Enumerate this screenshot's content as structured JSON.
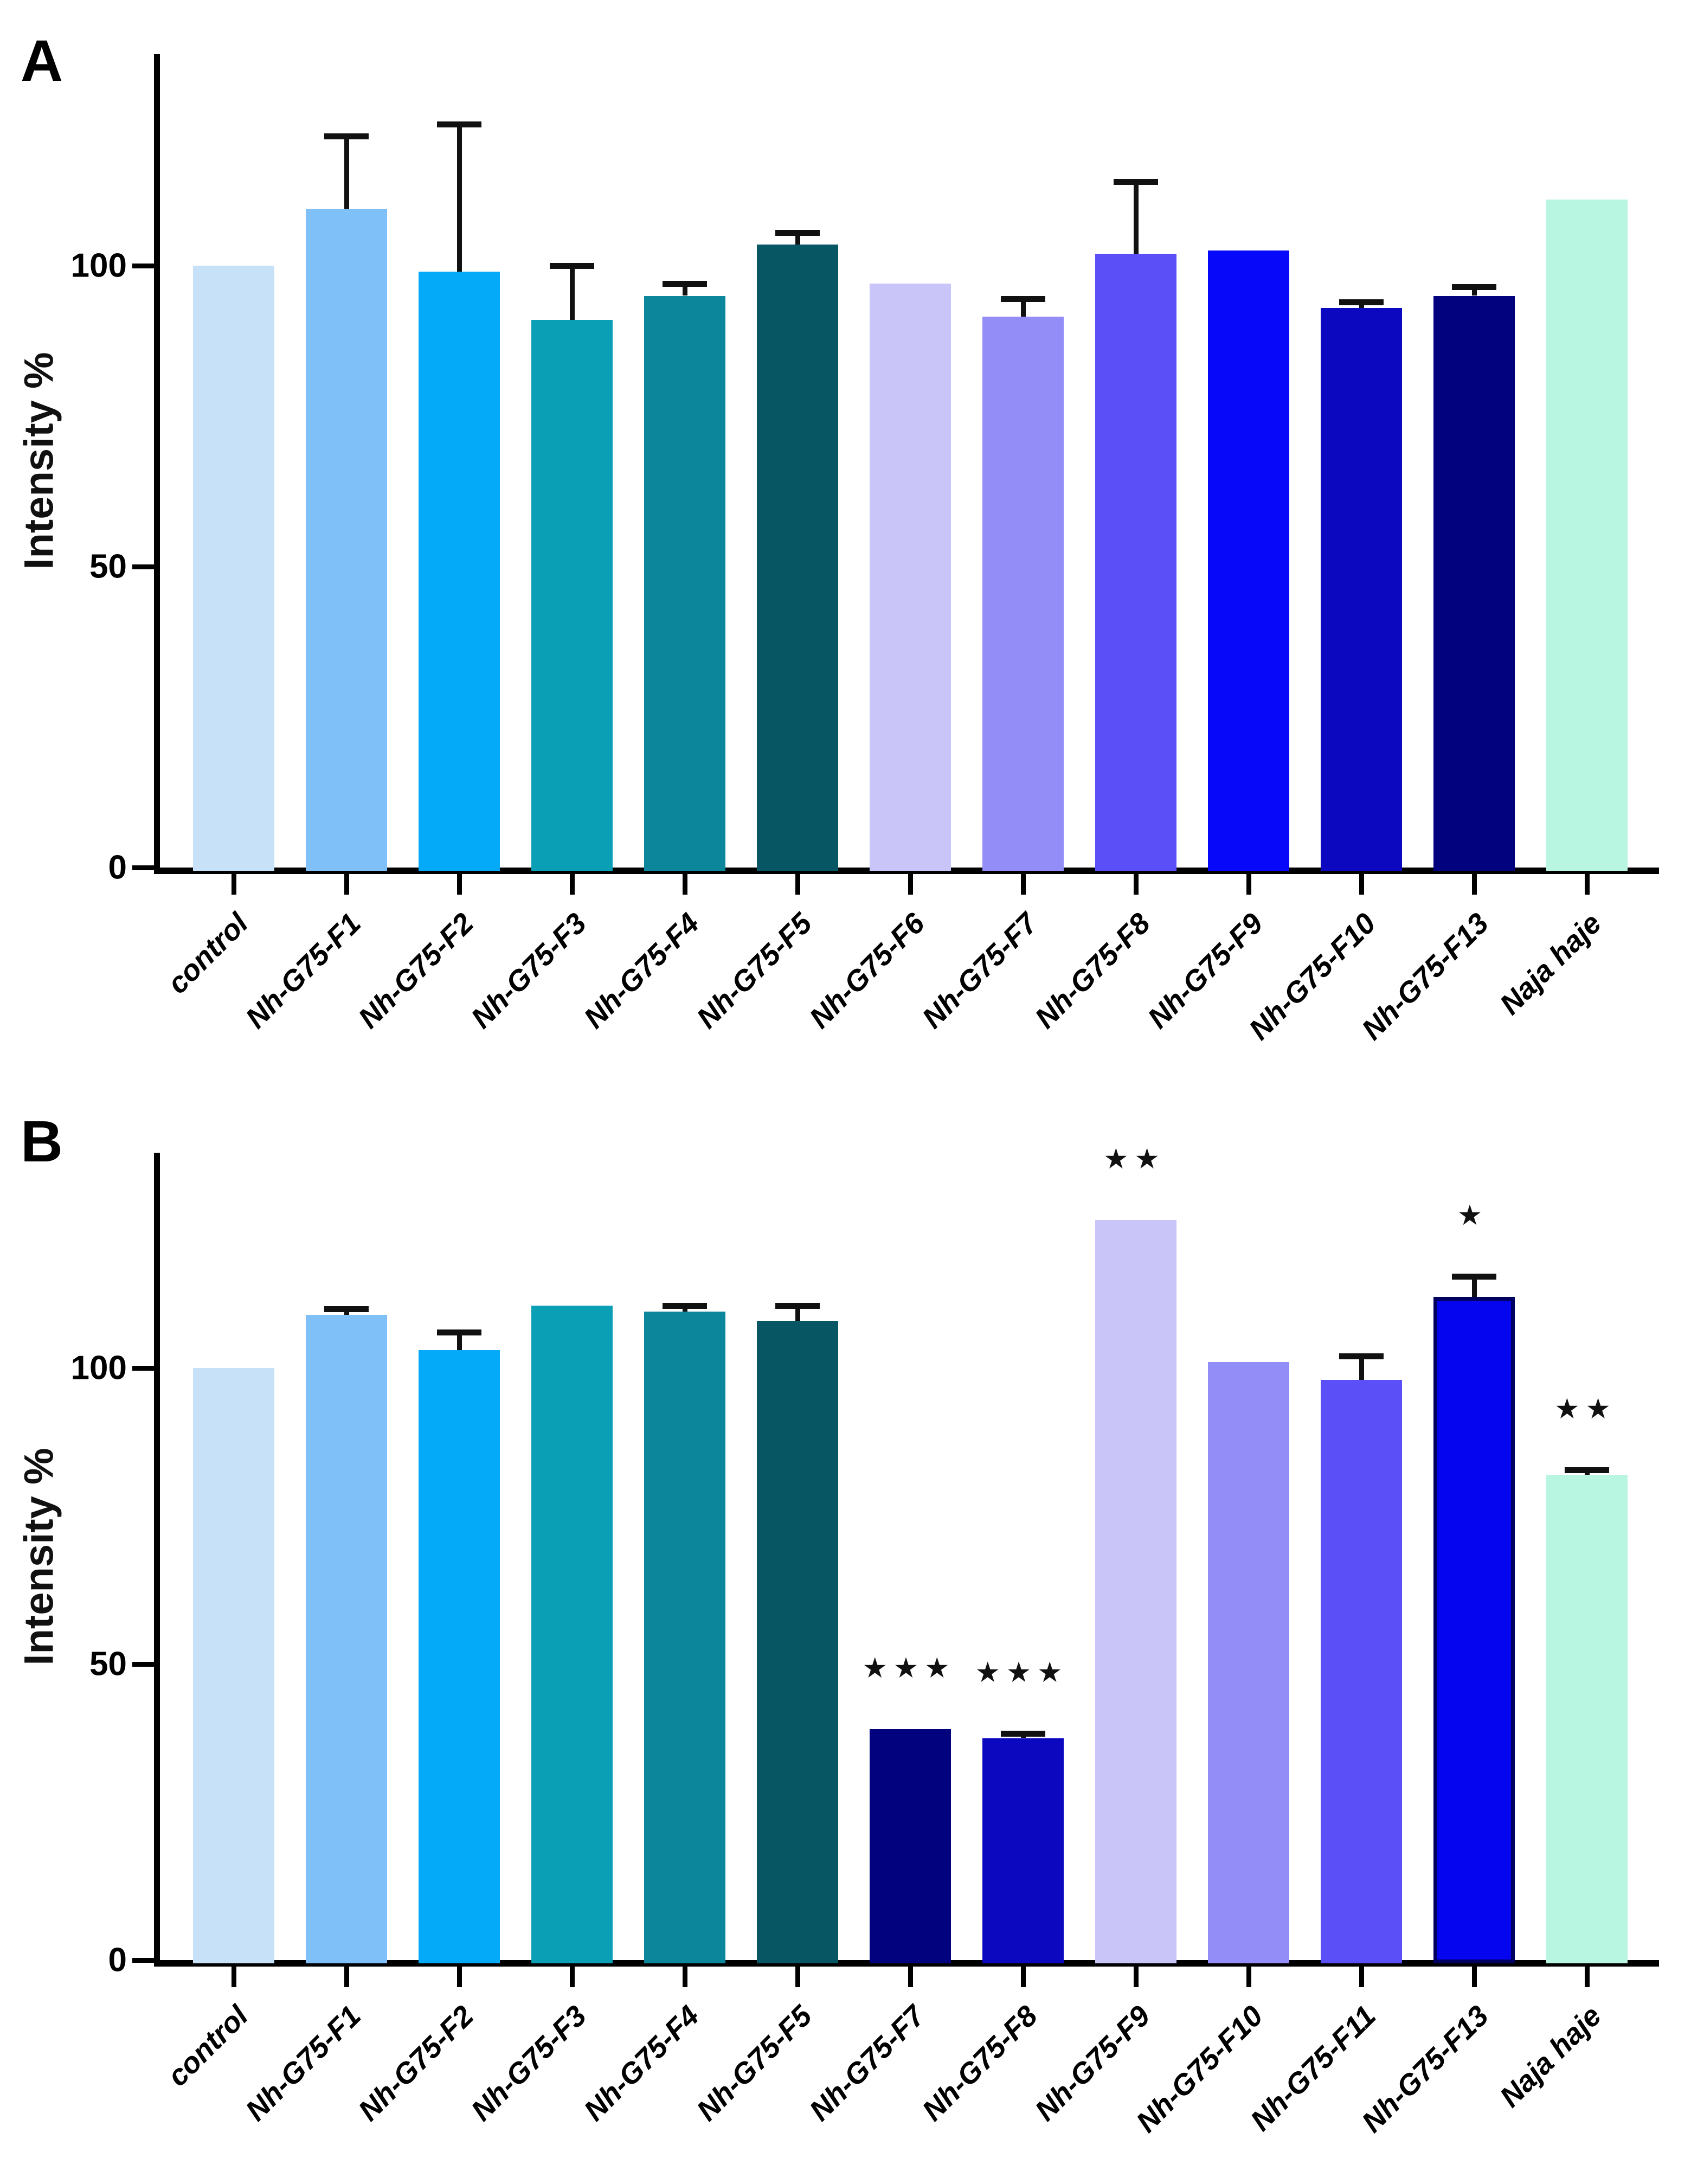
{
  "chart_data": [
    {
      "type": "bar",
      "panel_label": "A",
      "ylabel": "Intensity %",
      "yticks": [
        0,
        50,
        100
      ],
      "ylim": [
        0,
        135
      ],
      "grid": false,
      "legend": "none",
      "categories": [
        "control",
        "Nh-G75-F1",
        "Nh-G75-F2",
        "Nh-G75-F3",
        "Nh-G75-F4",
        "Nh-G75-F5",
        "Nh-G75-F6",
        "Nh-G75-F7",
        "Nh-G75-F8",
        "Nh-G75-F9",
        "Nh-G75-F10",
        "Nh-G75-F13",
        "Naja haje"
      ],
      "values": [
        100,
        109.5,
        99,
        91,
        95,
        103.5,
        97,
        91.5,
        102,
        102.5,
        93,
        95,
        111
      ],
      "errors_upper": [
        null,
        12,
        24.5,
        9,
        2,
        2,
        null,
        3,
        12,
        null,
        1,
        1.5,
        null
      ],
      "significance": [
        null,
        null,
        null,
        null,
        null,
        null,
        null,
        null,
        null,
        null,
        null,
        null,
        null
      ],
      "bar_colors": [
        "#c7e2f8",
        "#7fc0f8",
        "#04aaf8",
        "#0a9fb5",
        "#0b869b",
        "#075663",
        "#c9c5f9",
        "#938df8",
        "#5b50f8",
        "#0707fa",
        "#0b08c0",
        "#03027e",
        "#b9f6e1"
      ],
      "outlined": [
        false,
        false,
        false,
        false,
        false,
        false,
        false,
        false,
        false,
        false,
        false,
        false,
        false
      ]
    },
    {
      "type": "bar",
      "panel_label": "B",
      "ylabel": "Intensity %",
      "yticks": [
        0,
        50,
        100
      ],
      "ylim": [
        0,
        135
      ],
      "grid": false,
      "legend": "none",
      "categories": [
        "control",
        "Nh-G75-F1",
        "Nh-G75-F2",
        "Nh-G75-F3",
        "Nh-G75-F4",
        "Nh-G75-F5",
        "Nh-G75-F7",
        "Nh-G75-F8",
        "Nh-G75-F9",
        "Nh-G75-F10",
        "Nh-G75-F11",
        "Nh-G75-F13",
        "Naja haje"
      ],
      "values": [
        100,
        109,
        103,
        110.5,
        109.5,
        108,
        39,
        37.5,
        125,
        101,
        98,
        112,
        82
      ],
      "errors_upper": [
        null,
        1,
        3,
        null,
        1,
        2.5,
        null,
        0.8,
        null,
        null,
        4,
        3.5,
        0.8
      ],
      "significance": [
        null,
        null,
        null,
        null,
        null,
        null,
        "***",
        "***",
        "**",
        null,
        null,
        "*",
        "**"
      ],
      "bar_colors": [
        "#c7e2f8",
        "#7fc0f8",
        "#04aaf8",
        "#0a9fb5",
        "#0b869b",
        "#075663",
        "#03027e",
        "#0b08c0",
        "#c9c5f9",
        "#938df8",
        "#5b50f8",
        "#0505f0",
        "#b9f6e1"
      ],
      "outlined": [
        false,
        false,
        false,
        false,
        false,
        false,
        false,
        false,
        false,
        false,
        false,
        true,
        false
      ]
    }
  ]
}
